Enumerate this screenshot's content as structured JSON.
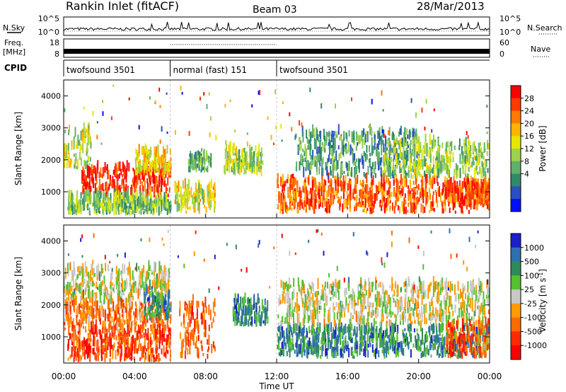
{
  "header": {
    "title": "Rankin Inlet (fitACF)",
    "beam": "Beam 03",
    "date": "28/Mar/2013"
  },
  "side_labels": {
    "nsky": "N.Sky",
    "nsearch": "N.Search",
    "freq_top": "Freq.",
    "freq_unit": "[MHz]",
    "nave": "Nave",
    "cpid": "CPID"
  },
  "noise_panel": {
    "left_ticks": [
      "10^5",
      "10^0"
    ],
    "right_ticks": [
      "10^5",
      "10^0"
    ]
  },
  "freq_panel": {
    "left_ticks": [
      "18",
      "8"
    ],
    "right_ticks": [
      "60",
      "0"
    ]
  },
  "cpid_segments": [
    {
      "label": "twofsound 3501",
      "start": 0,
      "end": 6
    },
    {
      "label": "normal (fast) 151",
      "start": 6,
      "end": 12
    },
    {
      "label": "twofsound 3501",
      "start": 12,
      "end": 24
    }
  ],
  "power_colorbar": {
    "label": "Power [dB]",
    "ticks": [
      "28",
      "24",
      "20",
      "16",
      "12",
      "8",
      "4"
    ],
    "colors": [
      "#ff0000",
      "#ff3a00",
      "#ff7a00",
      "#ffb400",
      "#e6e600",
      "#9fd24a",
      "#5fb06a",
      "#2f8a6a",
      "#2850c0",
      "#0010ff"
    ]
  },
  "velocity_colorbar": {
    "label": "Velocity [m s",
    "label_sup": "-1",
    "label_close": "]",
    "ticks": [
      "1000",
      "500",
      "100",
      "25",
      "-25",
      "-100",
      "-500",
      "-1000"
    ],
    "colors": [
      "#1a20c8",
      "#2f70b0",
      "#2f8a5a",
      "#55c030",
      "#c8c8c8",
      "#ff9a00",
      "#ff6a00",
      "#ff2a00",
      "#ff0000"
    ]
  },
  "chart_data": {
    "type": "heatmap",
    "xlabel": "Time UT",
    "ylabel": "Slant Range [km]",
    "x_ticks": [
      "00:00",
      "04:00",
      "08:00",
      "12:00",
      "16:00",
      "20:00",
      "00:00"
    ],
    "x_range_hours": [
      0,
      24
    ],
    "y_ticks": [
      1000,
      2000,
      3000,
      4000
    ],
    "y_range_km": [
      180,
      4500
    ],
    "panels": [
      {
        "name": "Power",
        "blobs": [
          {
            "t0": 0.0,
            "t1": 1.5,
            "r0": 1700,
            "r1": 2900,
            "level": 0.5
          },
          {
            "t0": 1.0,
            "t1": 6.0,
            "r0": 800,
            "r1": 1700,
            "level": 0.9
          },
          {
            "t0": 0.2,
            "t1": 6.0,
            "r0": 250,
            "r1": 800,
            "level": 0.4
          },
          {
            "t0": 4.0,
            "t1": 6.0,
            "r0": 1500,
            "r1": 2200,
            "level": 0.6
          },
          {
            "t0": 6.2,
            "t1": 8.5,
            "r0": 300,
            "r1": 1100,
            "level": 0.55
          },
          {
            "t0": 7.0,
            "t1": 8.3,
            "r0": 1600,
            "r1": 2100,
            "level": 0.35
          },
          {
            "t0": 9.0,
            "t1": 11.2,
            "r0": 1450,
            "r1": 2300,
            "level": 0.45
          },
          {
            "t0": 12.0,
            "t1": 24.0,
            "r0": 300,
            "r1": 1300,
            "level": 0.8
          },
          {
            "t0": 13.0,
            "t1": 20.0,
            "r0": 1400,
            "r1": 2800,
            "level": 0.3
          },
          {
            "t0": 18.0,
            "t1": 24.0,
            "r0": 1400,
            "r1": 2500,
            "level": 0.45
          },
          {
            "t0": 21.5,
            "t1": 24.0,
            "r0": 500,
            "r1": 1100,
            "level": 0.85
          }
        ]
      },
      {
        "name": "Velocity",
        "blobs": [
          {
            "t0": 0.0,
            "t1": 6.0,
            "r0": 2000,
            "r1": 3100,
            "level": 0.5
          },
          {
            "t0": 0.0,
            "t1": 6.0,
            "r0": 1100,
            "r1": 2000,
            "level": 0.3
          },
          {
            "t0": 0.2,
            "t1": 6.0,
            "r0": 200,
            "r1": 1100,
            "level": 0.2
          },
          {
            "t0": 4.5,
            "t1": 6.0,
            "r0": 1500,
            "r1": 2300,
            "level": 0.75
          },
          {
            "t0": 6.5,
            "t1": 8.5,
            "r0": 300,
            "r1": 2000,
            "level": 0.25
          },
          {
            "t0": 9.5,
            "t1": 11.5,
            "r0": 1300,
            "r1": 2100,
            "level": 0.75
          },
          {
            "t0": 12.0,
            "t1": 24.0,
            "r0": 300,
            "r1": 1200,
            "level": 0.75
          },
          {
            "t0": 12.0,
            "t1": 24.0,
            "r0": 1300,
            "r1": 2600,
            "level": 0.5
          },
          {
            "t0": 21.5,
            "t1": 24.0,
            "r0": 300,
            "r1": 1400,
            "level": 0.25
          }
        ]
      }
    ]
  }
}
